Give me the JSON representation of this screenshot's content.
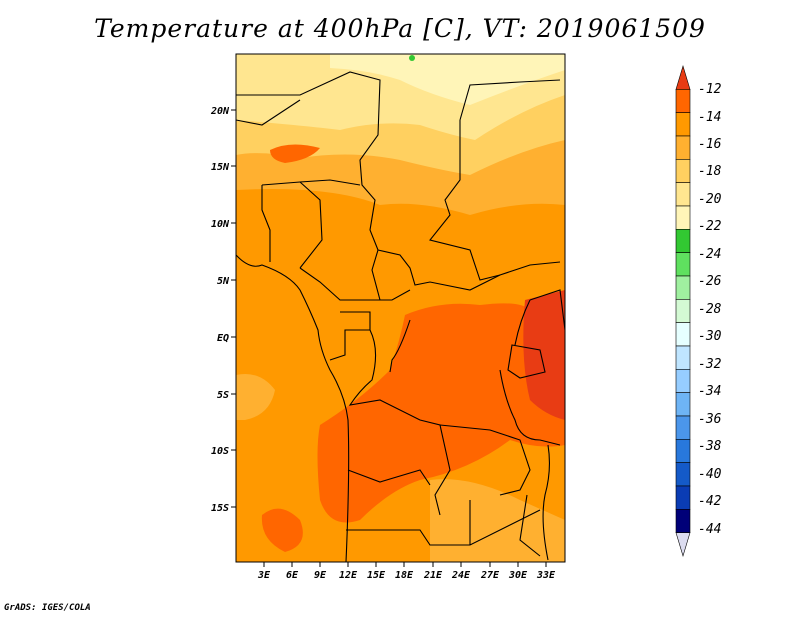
{
  "title": "Temperature at 400hPa [C], VT: 2019061509",
  "credit": "GrADS: IGES/COLA",
  "map": {
    "lat_labels": [
      "20N",
      "15N",
      "10N",
      "5N",
      "EQ",
      "5S",
      "10S",
      "15S"
    ],
    "lon_labels": [
      "3E",
      "6E",
      "9E",
      "12E",
      "15E",
      "18E",
      "21E",
      "24E",
      "27E",
      "30E",
      "33E"
    ]
  },
  "colorbar": {
    "labels": [
      "-12",
      "-14",
      "-16",
      "-18",
      "-20",
      "-22",
      "-24",
      "-26",
      "-28",
      "-30",
      "-32",
      "-34",
      "-36",
      "-38",
      "-40",
      "-42",
      "-44"
    ],
    "colors": [
      "#e83c14",
      "#ff6600",
      "#ff9900",
      "#ffb030",
      "#ffd060",
      "#ffe690",
      "#fff5b8",
      "#32c832",
      "#5fe05f",
      "#a0f0a0",
      "#d4fad4",
      "#e6ffff",
      "#bfe5ff",
      "#96cdff",
      "#6eb4f5",
      "#4b96eb",
      "#2878dc",
      "#145ac8",
      "#0a3cb4",
      "#000078",
      "#dcdcf0"
    ]
  }
}
